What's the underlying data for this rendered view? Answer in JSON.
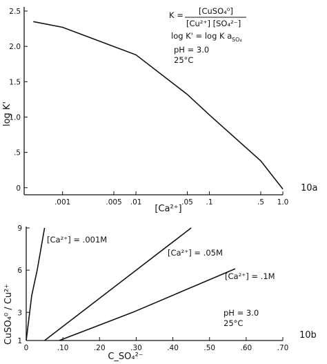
{
  "chart_data": [
    {
      "type": "line",
      "panel": "10a",
      "ylabel": "log K'",
      "xlabel": "[Ca²⁺]",
      "x_scale": "log",
      "x_ticks": [
        ".001",
        ".005",
        ".01",
        ".05",
        ".1",
        ".5",
        "1.0"
      ],
      "y_ticks": [
        "0",
        ".5",
        "1.0",
        "1.5",
        "2.0",
        "2.5"
      ],
      "ylim": [
        0,
        2.5
      ],
      "annotations": [
        "K = [CuSO₄⁰] / [Cu²⁺][SO₄²⁻]",
        "log K' = log K a_SO₄",
        "pH = 3.0",
        "25°C"
      ],
      "series": [
        {
          "x": [
            0.0004,
            0.001,
            0.01,
            0.05,
            0.1,
            0.5,
            1.0
          ],
          "y": [
            2.35,
            2.27,
            1.88,
            1.32,
            1.03,
            0.38,
            -0.02
          ]
        }
      ]
    },
    {
      "type": "line",
      "panel": "10b",
      "ylabel": "CuSO₄⁰ / Cu²⁺",
      "xlabel": "C_SO₄²⁻",
      "x_ticks": [
        "0",
        ".10",
        ".20",
        ".30",
        ".40",
        ".50",
        ".60",
        ".70"
      ],
      "y_ticks": [
        "1",
        "3",
        "6",
        "9"
      ],
      "xlim": [
        0,
        0.7
      ],
      "ylim": [
        1,
        9
      ],
      "annotations": [
        "pH = 3.0",
        "25°C"
      ],
      "series": [
        {
          "name": "[Ca²⁺] = .001M",
          "x": [
            0.0,
            0.015,
            0.03,
            0.05
          ],
          "y": [
            1,
            4.2,
            6.0,
            9.0
          ]
        },
        {
          "name": "[Ca²⁺] = .05M",
          "x": [
            0.05,
            0.15,
            0.3,
            0.45
          ],
          "y": [
            1,
            3.0,
            6.0,
            9.0
          ]
        },
        {
          "name": "[Ca²⁺] = .1M",
          "x": [
            0.09,
            0.29,
            0.57
          ],
          "y": [
            1,
            3.0,
            6.1
          ]
        }
      ]
    }
  ]
}
